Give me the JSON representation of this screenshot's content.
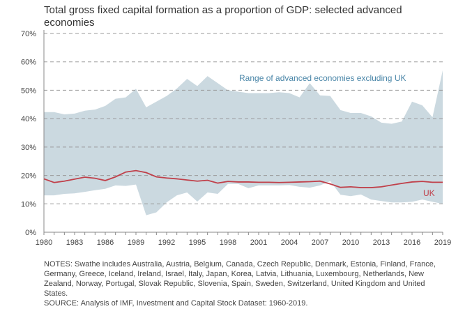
{
  "chart_data": {
    "type": "area",
    "title": "Total gross fixed capital formation as a proportion of GDP: selected advanced economies",
    "xlabel": "",
    "ylabel": "",
    "ylim": [
      0,
      70
    ],
    "xlim": [
      1980,
      2019
    ],
    "grid": "horizontal dashed",
    "x": [
      1980,
      1981,
      1982,
      1983,
      1984,
      1985,
      1986,
      1987,
      1988,
      1989,
      1990,
      1991,
      1992,
      1993,
      1994,
      1995,
      1996,
      1997,
      1998,
      1999,
      2000,
      2001,
      2002,
      2003,
      2004,
      2005,
      2006,
      2007,
      2008,
      2009,
      2010,
      2011,
      2012,
      2013,
      2014,
      2015,
      2016,
      2017,
      2018,
      2019
    ],
    "xticks": [
      "1980",
      "1983",
      "1986",
      "1989",
      "1992",
      "1995",
      "1998",
      "2001",
      "2004",
      "2007",
      "2010",
      "2013",
      "2016",
      "2019"
    ],
    "yticks": [
      "0%",
      "10%",
      "20%",
      "30%",
      "40%",
      "50%",
      "60%",
      "70%"
    ],
    "yticks_values": [
      0,
      10,
      20,
      30,
      40,
      50,
      60,
      70
    ],
    "series": [
      {
        "name": "Range of advanced economies excluding UK",
        "type": "band",
        "color": "#cbd9e0",
        "label_color": "#4a86a8",
        "upper": [
          42.3,
          42.3,
          41.5,
          41.8,
          42.8,
          43.2,
          44.5,
          47,
          47.5,
          50.5,
          44,
          46,
          48,
          50.6,
          54,
          51.5,
          55,
          52.5,
          50,
          49.5,
          49,
          49,
          49,
          49.3,
          49,
          47.5,
          52.5,
          48.2,
          48,
          43,
          42,
          42,
          40.8,
          38.6,
          38.2,
          39,
          46,
          44.7,
          40.5,
          57
        ],
        "lower": [
          13,
          13,
          13.5,
          13.7,
          14.2,
          14.8,
          15.3,
          16.5,
          16.3,
          16.8,
          6,
          7,
          10.5,
          13,
          14,
          10.8,
          14,
          13.5,
          17,
          17,
          15.5,
          16.5,
          16.5,
          16.5,
          16.6,
          16,
          15.7,
          16.5,
          18,
          13.2,
          12.7,
          13.3,
          11.5,
          11,
          10.5,
          10.5,
          10.7,
          11.5,
          10.7,
          10
        ]
      },
      {
        "name": "UK",
        "type": "line",
        "color": "#c0404a",
        "values": [
          18.8,
          17.5,
          18,
          18.7,
          19.4,
          19,
          18.2,
          19.5,
          21.2,
          21.7,
          21,
          19.5,
          19.1,
          18.8,
          18.4,
          18,
          18.3,
          17.3,
          17.9,
          17.7,
          17.7,
          17.6,
          17.6,
          17.5,
          17.6,
          17.7,
          17.8,
          18,
          17,
          15.8,
          16,
          15.7,
          15.7,
          16,
          16.6,
          17.2,
          17.7,
          17.9,
          17.6,
          17.6
        ]
      }
    ]
  },
  "notes": [
    "NOTES: Swathe includes Australia, Austria, Belgium, Canada, Czech Republic, Denmark, Estonia, Finland, France, Germany, Greece, Iceland, Ireland, Israel, Italy, Japan, Korea, Latvia, Lithuania, Luxembourg, Netherlands, New Zealand, Norway, Portugal, Slovak Republic, Slovenia, Spain, Sweden, Switzerland, United Kingdom and United States.",
    "SOURCE: Analysis of IMF, Investment and Capital Stock Dataset: 1960-2019."
  ]
}
